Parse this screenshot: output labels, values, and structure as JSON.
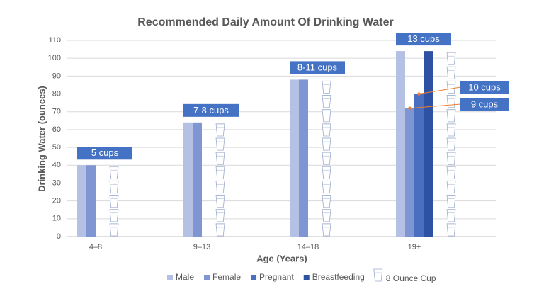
{
  "chart_data": {
    "type": "bar",
    "title": "Recommended Daily Amount Of Drinking Water",
    "x_label": "Age (Years)",
    "y_label": "Drinking Water (ounces)",
    "categories": [
      "4–8",
      "9–13",
      "14–18",
      "19+"
    ],
    "series": [
      {
        "name": "Male",
        "color": "#b4c0e4",
        "values": [
          40,
          64,
          88,
          104
        ]
      },
      {
        "name": "Female",
        "color": "#8096d3",
        "values": [
          40,
          64,
          88,
          72
        ]
      },
      {
        "name": "Pregnant",
        "color": "#4a6fc0",
        "values": [
          null,
          null,
          null,
          80
        ]
      },
      {
        "name": "Breastfeeding",
        "color": "#2e52a3",
        "values": [
          null,
          null,
          null,
          104
        ]
      }
    ],
    "cup_series": {
      "name": "8 Ounce Cup",
      "color": "#9aaacb",
      "values": [
        40,
        64,
        88,
        104
      ]
    },
    "group_labels": [
      "5 cups",
      "7-8 cups",
      "8-11 cups",
      "13 cups"
    ],
    "label_color": "#4472c4",
    "callouts": [
      {
        "text": "10 cups",
        "series": "Pregnant",
        "category": "19+"
      },
      {
        "text": "9 cups",
        "series": "Female",
        "category": "19+"
      }
    ],
    "callout_color": "#ed7d31",
    "ylim": [
      0,
      110
    ],
    "yticks": [
      0,
      10,
      20,
      30,
      40,
      50,
      60,
      70,
      80,
      90,
      100,
      110
    ],
    "grid": true,
    "legend": "bottom"
  }
}
